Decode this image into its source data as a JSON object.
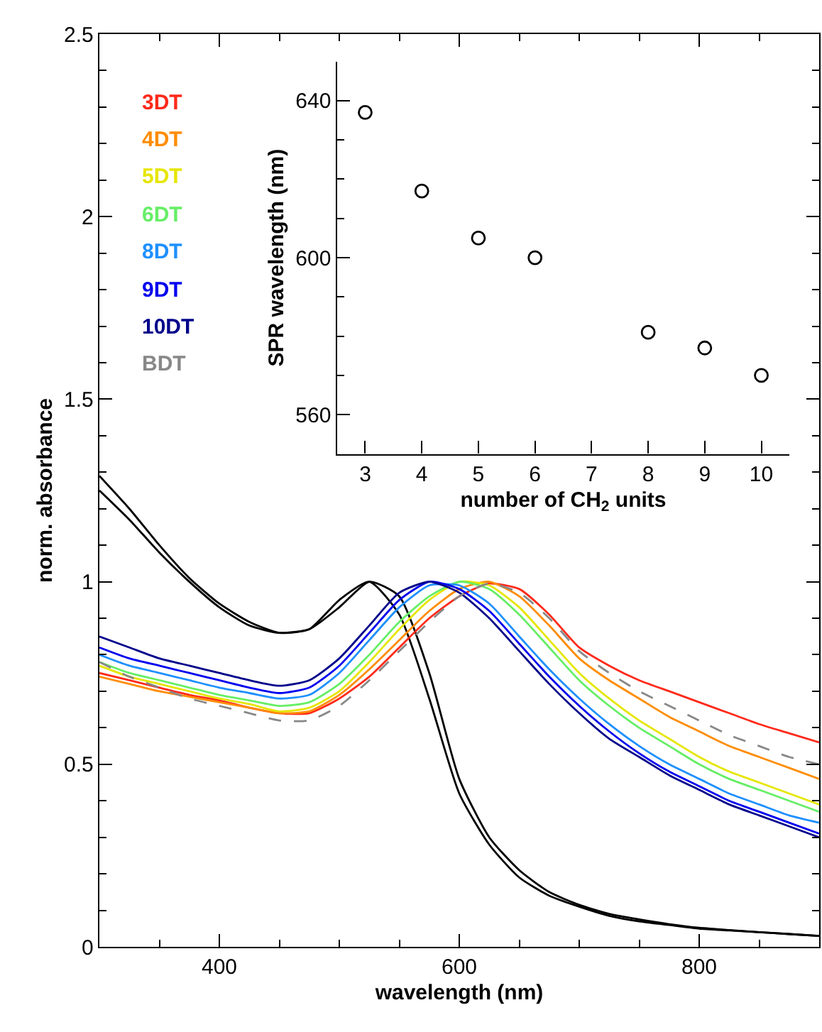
{
  "chart_data": [
    {
      "type": "line",
      "xlabel": "wavelength (nm)",
      "ylabel": "norm. absorbance",
      "xlim": [
        300,
        900
      ],
      "ylim": [
        0,
        2.5
      ],
      "xticks": [
        {
          "value": 350,
          "label": null
        },
        400,
        {
          "value": 450,
          "label": null
        },
        {
          "value": 500,
          "label": null
        },
        {
          "value": 550,
          "label": null
        },
        600,
        {
          "value": 650,
          "label": null
        },
        {
          "value": 700,
          "label": null
        },
        {
          "value": 750,
          "label": null
        },
        800,
        {
          "value": 850,
          "label": null
        }
      ],
      "yticks": [
        0,
        {
          "value": 0.1,
          "label": null
        },
        {
          "value": 0.2,
          "label": null
        },
        {
          "value": 0.3,
          "label": null
        },
        {
          "value": 0.4,
          "label": null
        },
        0.5,
        {
          "value": 0.6,
          "label": null
        },
        {
          "value": 0.7,
          "label": null
        },
        {
          "value": 0.8,
          "label": null
        },
        {
          "value": 0.9,
          "label": null
        },
        1,
        {
          "value": 1.1,
          "label": null
        },
        {
          "value": 1.2,
          "label": null
        },
        {
          "value": 1.3,
          "label": null
        },
        {
          "value": 1.4,
          "label": null
        },
        1.5,
        {
          "value": 1.6,
          "label": null
        },
        {
          "value": 1.7,
          "label": null
        },
        {
          "value": 1.8,
          "label": null
        },
        {
          "value": 1.9,
          "label": null
        },
        2,
        {
          "value": 2.1,
          "label": null
        },
        {
          "value": 2.2,
          "label": null
        },
        {
          "value": 2.3,
          "label": null
        },
        {
          "value": 2.4,
          "label": null
        },
        2.5
      ],
      "x": [
        300,
        325,
        350,
        375,
        400,
        425,
        450,
        475,
        500,
        525,
        550,
        575,
        600,
        625,
        650,
        675,
        700,
        725,
        750,
        775,
        800,
        825,
        850,
        875,
        900
      ],
      "legend": "top left",
      "marker": "none",
      "line_style": "solid",
      "series": [
        {
          "color": "#000000",
          "values": [
            1.29,
            1.2,
            1.1,
            1.01,
            0.94,
            0.89,
            0.86,
            0.87,
            0.95,
            1.0,
            0.91,
            0.68,
            0.42,
            0.28,
            0.19,
            0.14,
            0.11,
            0.085,
            0.07,
            0.06,
            0.05,
            0.045,
            0.04,
            0.035,
            0.03
          ]
        },
        {
          "color": "#000000",
          "values": [
            1.25,
            1.17,
            1.08,
            1.0,
            0.93,
            0.88,
            0.86,
            0.87,
            0.93,
            1.0,
            0.96,
            0.75,
            0.46,
            0.3,
            0.21,
            0.15,
            0.115,
            0.09,
            0.075,
            0.062,
            0.052,
            0.046,
            0.04,
            0.035,
            0.03
          ]
        },
        {
          "name": "3DT",
          "color": "#ff2a1a",
          "values": [
            0.75,
            0.73,
            0.71,
            0.69,
            0.675,
            0.655,
            0.64,
            0.64,
            0.68,
            0.74,
            0.82,
            0.9,
            0.96,
            0.995,
            0.98,
            0.91,
            0.82,
            0.77,
            0.73,
            0.7,
            0.67,
            0.64,
            0.61,
            0.585,
            0.56
          ]
        },
        {
          "name": "4DT",
          "color": "#ff8c00",
          "values": [
            0.74,
            0.72,
            0.7,
            0.685,
            0.67,
            0.655,
            0.64,
            0.645,
            0.69,
            0.76,
            0.84,
            0.92,
            0.98,
            1.0,
            0.96,
            0.88,
            0.79,
            0.73,
            0.68,
            0.63,
            0.59,
            0.55,
            0.52,
            0.49,
            0.46
          ]
        },
        {
          "name": "5DT",
          "color": "#e6e600",
          "values": [
            0.77,
            0.74,
            0.72,
            0.7,
            0.68,
            0.665,
            0.645,
            0.655,
            0.7,
            0.78,
            0.87,
            0.95,
            1.0,
            0.99,
            0.93,
            0.84,
            0.75,
            0.68,
            0.62,
            0.57,
            0.52,
            0.48,
            0.45,
            0.42,
            0.39
          ]
        },
        {
          "name": "6DT",
          "color": "#66ee66",
          "values": [
            0.78,
            0.75,
            0.73,
            0.71,
            0.69,
            0.675,
            0.66,
            0.67,
            0.72,
            0.8,
            0.89,
            0.96,
            1.0,
            0.98,
            0.91,
            0.82,
            0.73,
            0.66,
            0.6,
            0.55,
            0.5,
            0.46,
            0.43,
            0.4,
            0.37
          ]
        },
        {
          "name": "8DT",
          "color": "#1e90ff",
          "values": [
            0.8,
            0.77,
            0.75,
            0.73,
            0.71,
            0.695,
            0.68,
            0.69,
            0.75,
            0.84,
            0.93,
            0.99,
            0.99,
            0.94,
            0.85,
            0.76,
            0.68,
            0.61,
            0.55,
            0.5,
            0.46,
            0.42,
            0.39,
            0.36,
            0.34
          ]
        },
        {
          "name": "9DT",
          "color": "#0000ee",
          "values": [
            0.82,
            0.79,
            0.77,
            0.75,
            0.73,
            0.71,
            0.695,
            0.71,
            0.77,
            0.86,
            0.95,
            1.0,
            0.98,
            0.92,
            0.83,
            0.74,
            0.66,
            0.59,
            0.53,
            0.48,
            0.44,
            0.4,
            0.37,
            0.34,
            0.31
          ]
        },
        {
          "name": "10DT",
          "color": "#00008b",
          "values": [
            0.85,
            0.82,
            0.79,
            0.77,
            0.75,
            0.73,
            0.715,
            0.73,
            0.79,
            0.88,
            0.97,
            1.0,
            0.97,
            0.9,
            0.81,
            0.72,
            0.64,
            0.57,
            0.52,
            0.47,
            0.43,
            0.39,
            0.36,
            0.33,
            0.3
          ]
        },
        {
          "name": "BDT",
          "color": "#888888",
          "line_style": "dashed",
          "values": [
            0.78,
            0.74,
            0.71,
            0.68,
            0.66,
            0.64,
            0.62,
            0.62,
            0.66,
            0.73,
            0.81,
            0.89,
            0.96,
            0.995,
            0.97,
            0.9,
            0.81,
            0.75,
            0.7,
            0.66,
            0.62,
            0.58,
            0.55,
            0.52,
            0.5
          ]
        }
      ]
    },
    {
      "type": "scatter",
      "xlabel": "number of CH$_{2}$ units",
      "ylabel": "SPR wavelength (nm)",
      "xlim": [
        2.5,
        10.5
      ],
      "ylim": [
        550,
        650
      ],
      "xticks": [
        3,
        4,
        5,
        6,
        7,
        8,
        9,
        10
      ],
      "yticks": [
        560,
        {
          "value": 570,
          "label": null
        },
        {
          "value": 580,
          "label": null
        },
        {
          "value": 590,
          "label": null
        },
        600,
        {
          "value": 610,
          "label": null
        },
        {
          "value": 620,
          "label": null
        },
        {
          "value": 630,
          "label": null
        },
        640
      ],
      "marker": "circle",
      "series": [
        {
          "color": "#000000",
          "x": [
            3,
            4,
            5,
            6,
            8,
            9,
            10
          ],
          "values": [
            637,
            617,
            605,
            600,
            581,
            577,
            570
          ]
        }
      ]
    }
  ]
}
